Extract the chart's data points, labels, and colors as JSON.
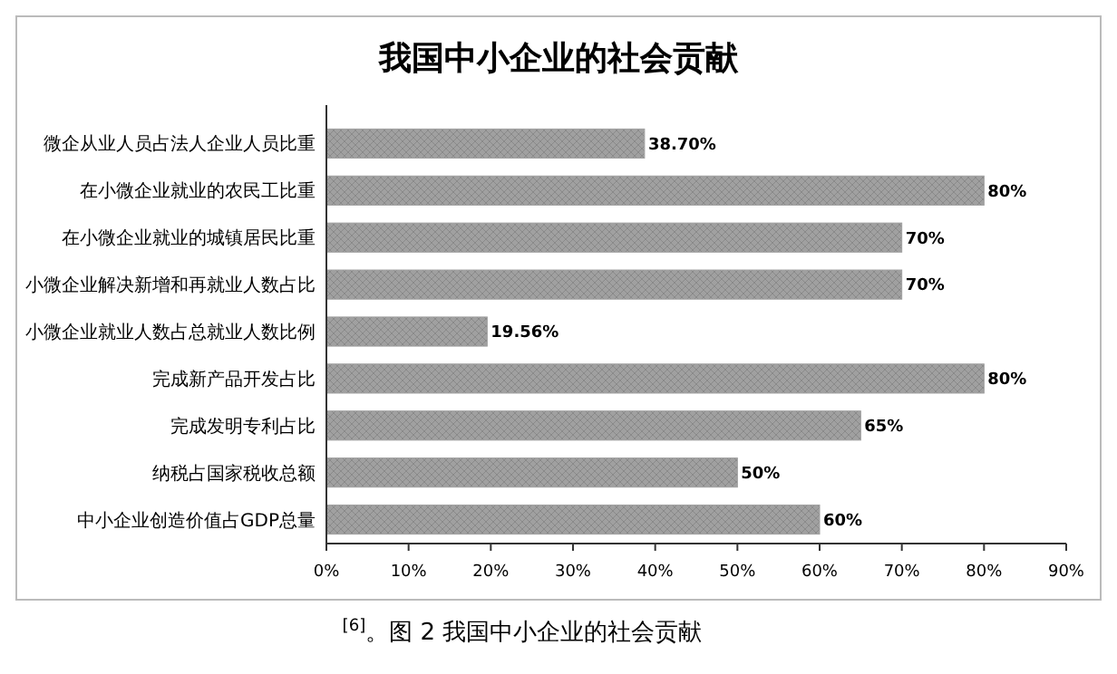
{
  "chart_data": {
    "type": "bar",
    "orientation": "horizontal",
    "title": "我国中小企业的社会贡献",
    "categories": [
      "微企从业人员占法人企业人员比重",
      "在小微企业就业的农民工比重",
      "在小微企业就业的城镇居民比重",
      "小微企业解决新增和再就业人数占比",
      "小微企业就业人数占总就业人数比例",
      "完成新产品开发占比",
      "完成发明专利占比",
      "纳税占国家税收总额",
      "中小企业创造价值占GDP总量"
    ],
    "values": [
      38.7,
      80,
      70,
      70,
      19.56,
      80,
      65,
      50,
      60
    ],
    "value_labels": [
      "38.70%",
      "80%",
      "70%",
      "70%",
      "19.56%",
      "80%",
      "65%",
      "50%",
      "60%"
    ],
    "color": "#a0a0a0",
    "xlim": [
      0,
      90
    ],
    "xticks": [
      {
        "value": 0,
        "label": "0%"
      },
      {
        "value": 10,
        "label": "10%"
      },
      {
        "value": 20,
        "label": "20%"
      },
      {
        "value": 30,
        "label": "30%"
      },
      {
        "value": 40,
        "label": "40%"
      },
      {
        "value": 50,
        "label": "50%"
      },
      {
        "value": 60,
        "label": "60%"
      },
      {
        "value": 70,
        "label": "70%"
      },
      {
        "value": 80,
        "label": "80%"
      },
      {
        "value": 90,
        "label": "90%"
      }
    ],
    "annotations": [
      "$^{[6]}$。图 2 我国中小企业的社会贡献"
    ]
  }
}
